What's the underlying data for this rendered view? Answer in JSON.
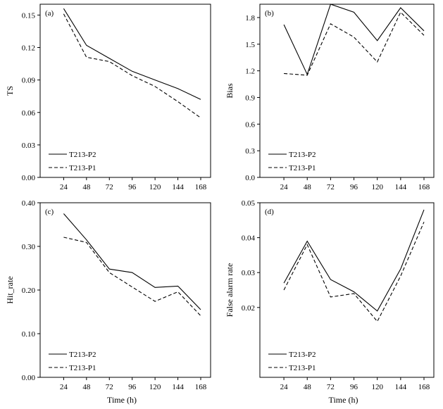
{
  "chart_data": [
    {
      "type": "line",
      "panel_label": "(a)",
      "ylabel": "TS",
      "xlabel": "",
      "ylim": [
        0,
        0.16
      ],
      "yticks": [
        "0.00",
        "0.03",
        "0.06",
        "0.09",
        "0.12",
        "0.15"
      ],
      "yticks_values": [
        0,
        0.03,
        0.06,
        0.09,
        0.12,
        0.15
      ],
      "categories": [
        "24",
        "48",
        "72",
        "96",
        "120",
        "144",
        "168"
      ],
      "legend_position": "bottom-left",
      "series": [
        {
          "name": "T213-P2",
          "style": "solid",
          "values": [
            0.156,
            0.122,
            0.11,
            0.098,
            0.09,
            0.082,
            0.072
          ]
        },
        {
          "name": "T213-P1",
          "style": "dashed",
          "values": [
            0.151,
            0.111,
            0.107,
            0.094,
            0.084,
            0.07,
            0.055
          ]
        }
      ]
    },
    {
      "type": "line",
      "panel_label": "(b)",
      "ylabel": "Bias",
      "xlabel": "",
      "ylim": [
        0,
        1.95
      ],
      "yticks": [
        "0.0",
        "0.3",
        "0.6",
        "0.9",
        "1.2",
        "1.5",
        "1.8"
      ],
      "yticks_values": [
        0,
        0.3,
        0.6,
        0.9,
        1.2,
        1.5,
        1.8
      ],
      "categories": [
        "24",
        "48",
        "72",
        "96",
        "120",
        "144",
        "168"
      ],
      "legend_position": "bottom-left",
      "series": [
        {
          "name": "T213-P2",
          "style": "solid",
          "values": [
            1.72,
            1.16,
            1.95,
            1.86,
            1.54,
            1.91,
            1.65
          ]
        },
        {
          "name": "T213-P1",
          "style": "dashed",
          "values": [
            1.17,
            1.15,
            1.73,
            1.58,
            1.3,
            1.86,
            1.6
          ]
        }
      ]
    },
    {
      "type": "line",
      "panel_label": "(c)",
      "ylabel": "Hit_rate",
      "xlabel": "Time (h)",
      "ylim": [
        0,
        0.4
      ],
      "yticks": [
        "0.00",
        "0.10",
        "0.20",
        "0.30",
        "0.40"
      ],
      "yticks_values": [
        0,
        0.1,
        0.2,
        0.3,
        0.4
      ],
      "categories": [
        "24",
        "48",
        "72",
        "96",
        "120",
        "144",
        "168"
      ],
      "legend_position": "bottom-left",
      "series": [
        {
          "name": "T213-P2",
          "style": "solid",
          "values": [
            0.375,
            0.315,
            0.248,
            0.24,
            0.206,
            0.209,
            0.155
          ]
        },
        {
          "name": "T213-P1",
          "style": "dashed",
          "values": [
            0.321,
            0.309,
            0.24,
            0.207,
            0.174,
            0.196,
            0.141
          ]
        }
      ]
    },
    {
      "type": "line",
      "panel_label": "(d)",
      "ylabel": "False alarm rate",
      "xlabel": "Time (h)",
      "ylim": [
        0,
        0.05
      ],
      "yticks": [
        "0.02",
        "0.03",
        "0.04",
        "0.05"
      ],
      "yticks_values": [
        0.02,
        0.03,
        0.04,
        0.05
      ],
      "categories": [
        "24",
        "48",
        "72",
        "96",
        "120",
        "144",
        "168"
      ],
      "legend_position": "bottom-left",
      "series": [
        {
          "name": "T213-P2",
          "style": "solid",
          "values": [
            0.027,
            0.039,
            0.028,
            0.0245,
            0.019,
            0.031,
            0.048
          ]
        },
        {
          "name": "T213-P1",
          "style": "dashed",
          "values": [
            0.025,
            0.038,
            0.023,
            0.024,
            0.016,
            0.029,
            0.0445
          ]
        }
      ]
    }
  ]
}
